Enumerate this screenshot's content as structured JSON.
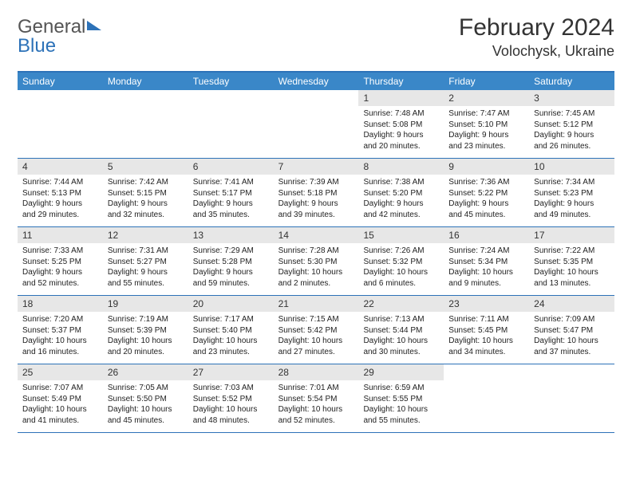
{
  "brand": {
    "part1": "General",
    "part2": "Blue"
  },
  "title": {
    "month": "February 2024",
    "location": "Volochysk, Ukraine"
  },
  "colors": {
    "header_bg": "#3a87c8",
    "border": "#2d72b8",
    "daynum_bg": "#e7e7e7"
  },
  "dayNames": [
    "Sunday",
    "Monday",
    "Tuesday",
    "Wednesday",
    "Thursday",
    "Friday",
    "Saturday"
  ],
  "weeks": [
    [
      {
        "num": "",
        "sunrise": "",
        "sunset": "",
        "daylight1": "",
        "daylight2": ""
      },
      {
        "num": "",
        "sunrise": "",
        "sunset": "",
        "daylight1": "",
        "daylight2": ""
      },
      {
        "num": "",
        "sunrise": "",
        "sunset": "",
        "daylight1": "",
        "daylight2": ""
      },
      {
        "num": "",
        "sunrise": "",
        "sunset": "",
        "daylight1": "",
        "daylight2": ""
      },
      {
        "num": "1",
        "sunrise": "Sunrise: 7:48 AM",
        "sunset": "Sunset: 5:08 PM",
        "daylight1": "Daylight: 9 hours",
        "daylight2": "and 20 minutes."
      },
      {
        "num": "2",
        "sunrise": "Sunrise: 7:47 AM",
        "sunset": "Sunset: 5:10 PM",
        "daylight1": "Daylight: 9 hours",
        "daylight2": "and 23 minutes."
      },
      {
        "num": "3",
        "sunrise": "Sunrise: 7:45 AM",
        "sunset": "Sunset: 5:12 PM",
        "daylight1": "Daylight: 9 hours",
        "daylight2": "and 26 minutes."
      }
    ],
    [
      {
        "num": "4",
        "sunrise": "Sunrise: 7:44 AM",
        "sunset": "Sunset: 5:13 PM",
        "daylight1": "Daylight: 9 hours",
        "daylight2": "and 29 minutes."
      },
      {
        "num": "5",
        "sunrise": "Sunrise: 7:42 AM",
        "sunset": "Sunset: 5:15 PM",
        "daylight1": "Daylight: 9 hours",
        "daylight2": "and 32 minutes."
      },
      {
        "num": "6",
        "sunrise": "Sunrise: 7:41 AM",
        "sunset": "Sunset: 5:17 PM",
        "daylight1": "Daylight: 9 hours",
        "daylight2": "and 35 minutes."
      },
      {
        "num": "7",
        "sunrise": "Sunrise: 7:39 AM",
        "sunset": "Sunset: 5:18 PM",
        "daylight1": "Daylight: 9 hours",
        "daylight2": "and 39 minutes."
      },
      {
        "num": "8",
        "sunrise": "Sunrise: 7:38 AM",
        "sunset": "Sunset: 5:20 PM",
        "daylight1": "Daylight: 9 hours",
        "daylight2": "and 42 minutes."
      },
      {
        "num": "9",
        "sunrise": "Sunrise: 7:36 AM",
        "sunset": "Sunset: 5:22 PM",
        "daylight1": "Daylight: 9 hours",
        "daylight2": "and 45 minutes."
      },
      {
        "num": "10",
        "sunrise": "Sunrise: 7:34 AM",
        "sunset": "Sunset: 5:23 PM",
        "daylight1": "Daylight: 9 hours",
        "daylight2": "and 49 minutes."
      }
    ],
    [
      {
        "num": "11",
        "sunrise": "Sunrise: 7:33 AM",
        "sunset": "Sunset: 5:25 PM",
        "daylight1": "Daylight: 9 hours",
        "daylight2": "and 52 minutes."
      },
      {
        "num": "12",
        "sunrise": "Sunrise: 7:31 AM",
        "sunset": "Sunset: 5:27 PM",
        "daylight1": "Daylight: 9 hours",
        "daylight2": "and 55 minutes."
      },
      {
        "num": "13",
        "sunrise": "Sunrise: 7:29 AM",
        "sunset": "Sunset: 5:28 PM",
        "daylight1": "Daylight: 9 hours",
        "daylight2": "and 59 minutes."
      },
      {
        "num": "14",
        "sunrise": "Sunrise: 7:28 AM",
        "sunset": "Sunset: 5:30 PM",
        "daylight1": "Daylight: 10 hours",
        "daylight2": "and 2 minutes."
      },
      {
        "num": "15",
        "sunrise": "Sunrise: 7:26 AM",
        "sunset": "Sunset: 5:32 PM",
        "daylight1": "Daylight: 10 hours",
        "daylight2": "and 6 minutes."
      },
      {
        "num": "16",
        "sunrise": "Sunrise: 7:24 AM",
        "sunset": "Sunset: 5:34 PM",
        "daylight1": "Daylight: 10 hours",
        "daylight2": "and 9 minutes."
      },
      {
        "num": "17",
        "sunrise": "Sunrise: 7:22 AM",
        "sunset": "Sunset: 5:35 PM",
        "daylight1": "Daylight: 10 hours",
        "daylight2": "and 13 minutes."
      }
    ],
    [
      {
        "num": "18",
        "sunrise": "Sunrise: 7:20 AM",
        "sunset": "Sunset: 5:37 PM",
        "daylight1": "Daylight: 10 hours",
        "daylight2": "and 16 minutes."
      },
      {
        "num": "19",
        "sunrise": "Sunrise: 7:19 AM",
        "sunset": "Sunset: 5:39 PM",
        "daylight1": "Daylight: 10 hours",
        "daylight2": "and 20 minutes."
      },
      {
        "num": "20",
        "sunrise": "Sunrise: 7:17 AM",
        "sunset": "Sunset: 5:40 PM",
        "daylight1": "Daylight: 10 hours",
        "daylight2": "and 23 minutes."
      },
      {
        "num": "21",
        "sunrise": "Sunrise: 7:15 AM",
        "sunset": "Sunset: 5:42 PM",
        "daylight1": "Daylight: 10 hours",
        "daylight2": "and 27 minutes."
      },
      {
        "num": "22",
        "sunrise": "Sunrise: 7:13 AM",
        "sunset": "Sunset: 5:44 PM",
        "daylight1": "Daylight: 10 hours",
        "daylight2": "and 30 minutes."
      },
      {
        "num": "23",
        "sunrise": "Sunrise: 7:11 AM",
        "sunset": "Sunset: 5:45 PM",
        "daylight1": "Daylight: 10 hours",
        "daylight2": "and 34 minutes."
      },
      {
        "num": "24",
        "sunrise": "Sunrise: 7:09 AM",
        "sunset": "Sunset: 5:47 PM",
        "daylight1": "Daylight: 10 hours",
        "daylight2": "and 37 minutes."
      }
    ],
    [
      {
        "num": "25",
        "sunrise": "Sunrise: 7:07 AM",
        "sunset": "Sunset: 5:49 PM",
        "daylight1": "Daylight: 10 hours",
        "daylight2": "and 41 minutes."
      },
      {
        "num": "26",
        "sunrise": "Sunrise: 7:05 AM",
        "sunset": "Sunset: 5:50 PM",
        "daylight1": "Daylight: 10 hours",
        "daylight2": "and 45 minutes."
      },
      {
        "num": "27",
        "sunrise": "Sunrise: 7:03 AM",
        "sunset": "Sunset: 5:52 PM",
        "daylight1": "Daylight: 10 hours",
        "daylight2": "and 48 minutes."
      },
      {
        "num": "28",
        "sunrise": "Sunrise: 7:01 AM",
        "sunset": "Sunset: 5:54 PM",
        "daylight1": "Daylight: 10 hours",
        "daylight2": "and 52 minutes."
      },
      {
        "num": "29",
        "sunrise": "Sunrise: 6:59 AM",
        "sunset": "Sunset: 5:55 PM",
        "daylight1": "Daylight: 10 hours",
        "daylight2": "and 55 minutes."
      },
      {
        "num": "",
        "sunrise": "",
        "sunset": "",
        "daylight1": "",
        "daylight2": ""
      },
      {
        "num": "",
        "sunrise": "",
        "sunset": "",
        "daylight1": "",
        "daylight2": ""
      }
    ]
  ]
}
